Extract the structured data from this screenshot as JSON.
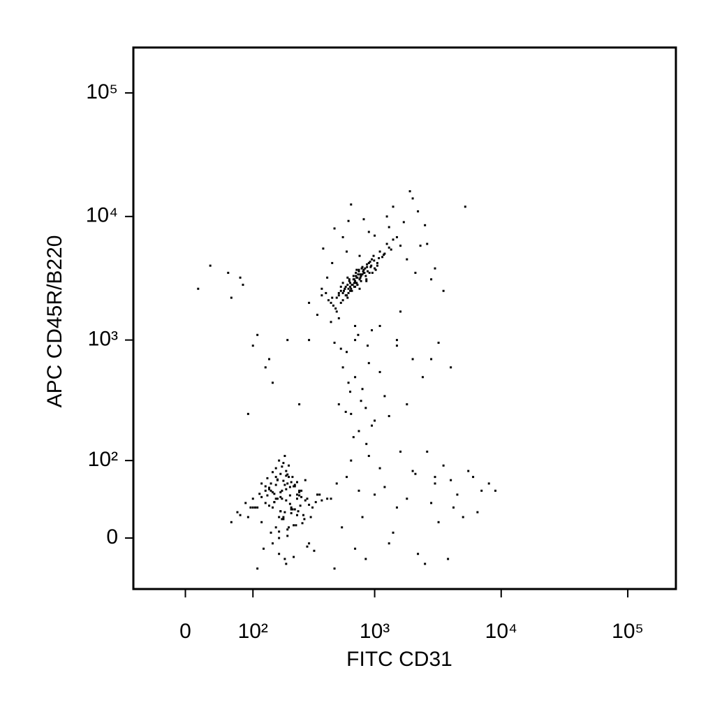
{
  "chart_data": {
    "type": "scatter",
    "xlabel": "FITC CD31",
    "ylabel": "APC CD45R/B220",
    "xscale": "biexponential",
    "yscale": "biexponential",
    "color": "#000000",
    "xlim": [
      -70,
      240000
    ],
    "ylim": [
      -55,
      233000
    ],
    "xticks": [
      0,
      {
        "value": 100,
        "label": "10²"
      },
      {
        "value": 1000,
        "label": "10³"
      },
      {
        "value": 10000,
        "label": "10⁴"
      },
      {
        "value": 100000,
        "label": "10⁵"
      }
    ],
    "yticks": [
      0,
      {
        "value": 100,
        "label": "10²"
      },
      {
        "value": 1000,
        "label": "10³"
      },
      {
        "value": 10000,
        "label": "10⁴"
      },
      {
        "value": 100000,
        "label": "10⁵"
      }
    ],
    "x": [
      700,
      650,
      820,
      560,
      900,
      760,
      610,
      980,
      720,
      540,
      680,
      840,
      590,
      1100,
      730,
      470,
      880,
      640,
      770,
      1250,
      520,
      690,
      950,
      610,
      800,
      430,
      1050,
      710,
      580,
      860,
      750,
      660,
      1300,
      500,
      920,
      620,
      780,
      1150,
      570,
      690,
      810,
      450,
      1000,
      730,
      600,
      870,
      1400,
      540,
      760,
      640,
      710,
      990,
      560,
      830,
      680,
      1200,
      490,
      770,
      930,
      620,
      380,
      1600,
      740,
      560,
      860,
      700,
      1080,
      630,
      790,
      520,
      910,
      660,
      1350,
      580,
      720,
      460,
      1020,
      850,
      610,
      750,
      690,
      1180,
      540,
      800,
      640,
      940,
      720,
      500,
      1500,
      670,
      780,
      590,
      870,
      1050,
      630,
      730,
      410,
      960,
      700,
      820,
      450,
      1700,
      380,
      2200,
      900,
      1900,
      350,
      2600,
      1400,
      560,
      480,
      2000,
      820,
      3000,
      600,
      1250,
      420,
      700,
      5200,
      2500,
      300,
      1100,
      1800,
      650,
      3500,
      950,
      520,
      2800,
      740,
      1500,
      1300,
      880,
      2300,
      460,
      1000,
      620,
      1600,
      390,
      2100,
      760,
      600,
      700,
      520,
      800,
      650,
      900,
      480,
      1000,
      560,
      750,
      1500,
      1200,
      2000,
      620,
      850,
      700,
      1100,
      540,
      1800,
      950,
      3200,
      2800,
      4000,
      640,
      780,
      1300,
      680,
      2400,
      860,
      590,
      30,
      55,
      80,
      60,
      110,
      200,
      150,
      130,
      100,
      15,
      250,
      140,
      90,
      300,
      75,
      180,
      150,
      210,
      170,
      240,
      130,
      200,
      160,
      260,
      190,
      120,
      220,
      175,
      280,
      145,
      230,
      195,
      110,
      250,
      165,
      300,
      185,
      140,
      215,
      170,
      350,
      125,
      205,
      155,
      270,
      190,
      100,
      235,
      175,
      320,
      150,
      210,
      135,
      245,
      180,
      90,
      225,
      160,
      290,
      200,
      115,
      255,
      170,
      380,
      145,
      215,
      195,
      130,
      265,
      185,
      105,
      240,
      160,
      310,
      200,
      175,
      85,
      230,
      150,
      275,
      190,
      120,
      220,
      165,
      340,
      140,
      205,
      180,
      250,
      70,
      195,
      160,
      290,
      215,
      130,
      185,
      240,
      155,
      60,
      210,
      170,
      420,
      145,
      225,
      195,
      120,
      260,
      175,
      95,
      200,
      150,
      330,
      185,
      230,
      140,
      165,
      280,
      110,
      215,
      190,
      75,
      250,
      170,
      135,
      205,
      180,
      365,
      155,
      225,
      100,
      195,
      240,
      160,
      300,
      175,
      450,
      600,
      800,
      1200,
      2000,
      3000,
      4500,
      6000,
      700,
      1500,
      2500,
      3500,
      5000,
      900,
      1800,
      4000,
      7000,
      550,
      1100,
      2200,
      3200,
      500,
      1300,
      2800,
      6500,
      8000,
      650,
      1000,
      1600,
      3800,
      5500,
      750,
      2100,
      4200,
      480,
      1400,
      2600,
      9000,
      850,
      3000
    ],
    "values": [
      3000,
      2600,
      3500,
      2400,
      4200,
      3100,
      2200,
      4800,
      2900,
      2000,
      3300,
      3800,
      2700,
      5200,
      2800,
      1900,
      3600,
      2500,
      3400,
      6000,
      2300,
      2700,
      4500,
      3200,
      3900,
      2100,
      4000,
      3500,
      2600,
      3100,
      3700,
      2800,
      5600,
      2200,
      4300,
      2400,
      3000,
      4700,
      2500,
      2900,
      3600,
      2000,
      3800,
      3200,
      2300,
      4100,
      6500,
      2700,
      2600,
      2900,
      3300,
      4400,
      2100,
      3500,
      3100,
      5000,
      1800,
      3200,
      3900,
      2600,
      2300,
      5800,
      3400,
      2900,
      3000,
      2700,
      4600,
      3100,
      3800,
      2400,
      3500,
      2500,
      5400,
      2600,
      3700,
      2200,
      3700,
      3300,
      2800,
      3600,
      3100,
      4900,
      2500,
      3400,
      2700,
      4000,
      3200,
      1700,
      6800,
      2800,
      3300,
      2300,
      3900,
      4200,
      3000,
      2800,
      2400,
      3500,
      2900,
      3700,
      1400,
      9000,
      2600,
      11000,
      7500,
      16000,
      1600,
      6000,
      12000,
      6800,
      8000,
      14000,
      9500,
      3800,
      5200,
      10000,
      3200,
      1300,
      12000,
      8500,
      2000,
      1300,
      4500,
      12500,
      2500,
      1200,
      1500,
      3100,
      1100,
      1000,
      8200,
      900,
      5800,
      4200,
      7000,
      9200,
      1700,
      5500,
      3500,
      4800,
      800,
      500,
      300,
      400,
      250,
      650,
      950,
      220,
      600,
      180,
      900,
      350,
      700,
      450,
      280,
      1000,
      550,
      850,
      300,
      200,
      950,
      700,
      600,
      380,
      320,
      240,
      160,
      500,
      140,
      260,
      4000,
      3500,
      2800,
      2200,
      1100,
      1000,
      450,
      600,
      900,
      2600,
      300,
      700,
      250,
      1000,
      3200,
      40,
      30,
      55,
      20,
      45,
      35,
      60,
      10,
      50,
      25,
      15,
      70,
      42,
      38,
      5,
      28,
      80,
      30,
      48,
      65,
      33,
      18,
      52,
      62,
      0,
      45,
      -10,
      90,
      36,
      22,
      58,
      40,
      12,
      75,
      30,
      -5,
      44,
      68,
      26,
      50,
      20,
      56,
      85,
      40,
      8,
      46,
      32,
      -15,
      38,
      60,
      24,
      72,
      50,
      14,
      95,
      30,
      62,
      40,
      20,
      2,
      48,
      35,
      58,
      78,
      18,
      -20,
      42,
      28,
      66,
      36,
      54,
      10,
      88,
      44,
      25,
      38,
      70,
      -8,
      30,
      56,
      64,
      22,
      46,
      15,
      34,
      100,
      40,
      50,
      12,
      -25,
      60,
      42,
      26,
      30,
      74,
      48,
      -12,
      20,
      56,
      32,
      40,
      65,
      -30,
      28,
      110,
      22,
      50,
      6,
      44,
      70,
      18,
      45,
      36,
      -18,
      30,
      52,
      40,
      58,
      -5,
      26,
      40,
      70,
      20,
      55,
      80,
      60,
      45,
      70,
      -10,
      30,
      -25,
      90,
      20,
      110,
      40,
      65,
      50,
      10,
      85,
      -15,
      15,
      60,
      -5,
      35,
      25,
      60,
      100,
      45,
      120,
      -20,
      80,
      50,
      75,
      30,
      -30,
      5,
      120,
      50,
      -20,
      70
    ]
  }
}
